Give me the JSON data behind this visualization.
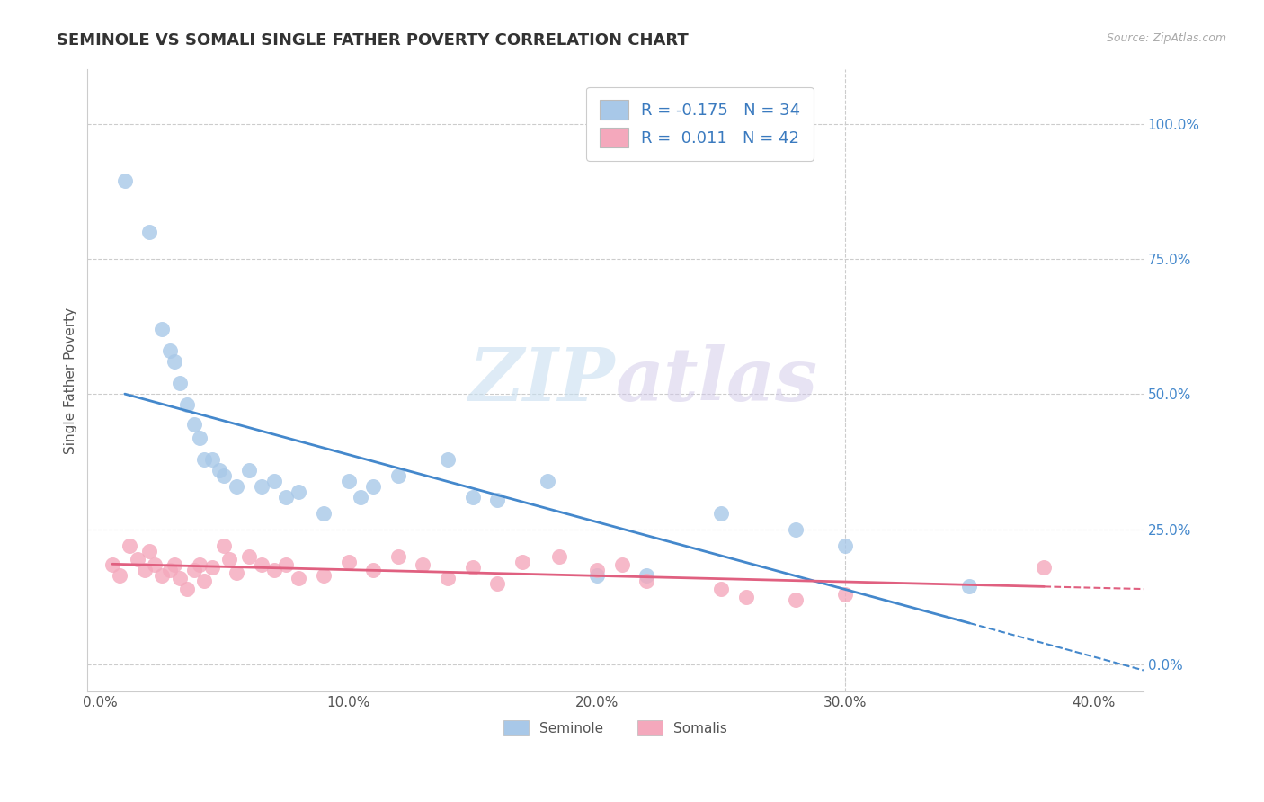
{
  "title": "SEMINOLE VS SOMALI SINGLE FATHER POVERTY CORRELATION CHART",
  "source": "Source: ZipAtlas.com",
  "ylabel": "Single Father Poverty",
  "xlim": [
    -0.005,
    0.42
  ],
  "ylim": [
    -0.05,
    1.1
  ],
  "xticks": [
    0.0,
    0.1,
    0.2,
    0.3,
    0.4
  ],
  "xtick_labels": [
    "0.0%",
    "10.0%",
    "20.0%",
    "30.0%",
    "40.0%"
  ],
  "yticks": [
    0.0,
    0.25,
    0.5,
    0.75,
    1.0
  ],
  "ytick_labels": [
    "0.0%",
    "25.0%",
    "50.0%",
    "75.0%",
    "100.0%"
  ],
  "seminole_color": "#a8c8e8",
  "somali_color": "#f4a8bc",
  "seminole_line_color": "#4488cc",
  "somali_line_color": "#e06080",
  "seminole_x": [
    0.01,
    0.02,
    0.025,
    0.028,
    0.03,
    0.032,
    0.035,
    0.038,
    0.04,
    0.042,
    0.045,
    0.048,
    0.05,
    0.055,
    0.06,
    0.065,
    0.07,
    0.075,
    0.08,
    0.09,
    0.1,
    0.105,
    0.11,
    0.12,
    0.14,
    0.15,
    0.16,
    0.18,
    0.2,
    0.22,
    0.25,
    0.28,
    0.3,
    0.35
  ],
  "seminole_y": [
    0.895,
    0.8,
    0.62,
    0.58,
    0.56,
    0.52,
    0.48,
    0.445,
    0.42,
    0.38,
    0.38,
    0.36,
    0.35,
    0.33,
    0.36,
    0.33,
    0.34,
    0.31,
    0.32,
    0.28,
    0.34,
    0.31,
    0.33,
    0.35,
    0.38,
    0.31,
    0.305,
    0.34,
    0.165,
    0.165,
    0.28,
    0.25,
    0.22,
    0.145
  ],
  "somali_x": [
    0.005,
    0.008,
    0.012,
    0.015,
    0.018,
    0.02,
    0.022,
    0.025,
    0.028,
    0.03,
    0.032,
    0.035,
    0.038,
    0.04,
    0.042,
    0.045,
    0.05,
    0.052,
    0.055,
    0.06,
    0.065,
    0.07,
    0.075,
    0.08,
    0.09,
    0.1,
    0.11,
    0.12,
    0.13,
    0.14,
    0.15,
    0.16,
    0.17,
    0.185,
    0.2,
    0.21,
    0.22,
    0.25,
    0.26,
    0.28,
    0.3,
    0.38
  ],
  "somali_y": [
    0.185,
    0.165,
    0.22,
    0.195,
    0.175,
    0.21,
    0.185,
    0.165,
    0.175,
    0.185,
    0.16,
    0.14,
    0.175,
    0.185,
    0.155,
    0.18,
    0.22,
    0.195,
    0.17,
    0.2,
    0.185,
    0.175,
    0.185,
    0.16,
    0.165,
    0.19,
    0.175,
    0.2,
    0.185,
    0.16,
    0.18,
    0.15,
    0.19,
    0.2,
    0.175,
    0.185,
    0.155,
    0.14,
    0.125,
    0.12,
    0.13,
    0.18
  ],
  "background_color": "#ffffff",
  "grid_color": "#cccccc",
  "watermark_zip": "ZIP",
  "watermark_atlas": "atlas",
  "title_fontsize": 13,
  "axis_label_fontsize": 11,
  "tick_fontsize": 11,
  "legend_fontsize": 13
}
